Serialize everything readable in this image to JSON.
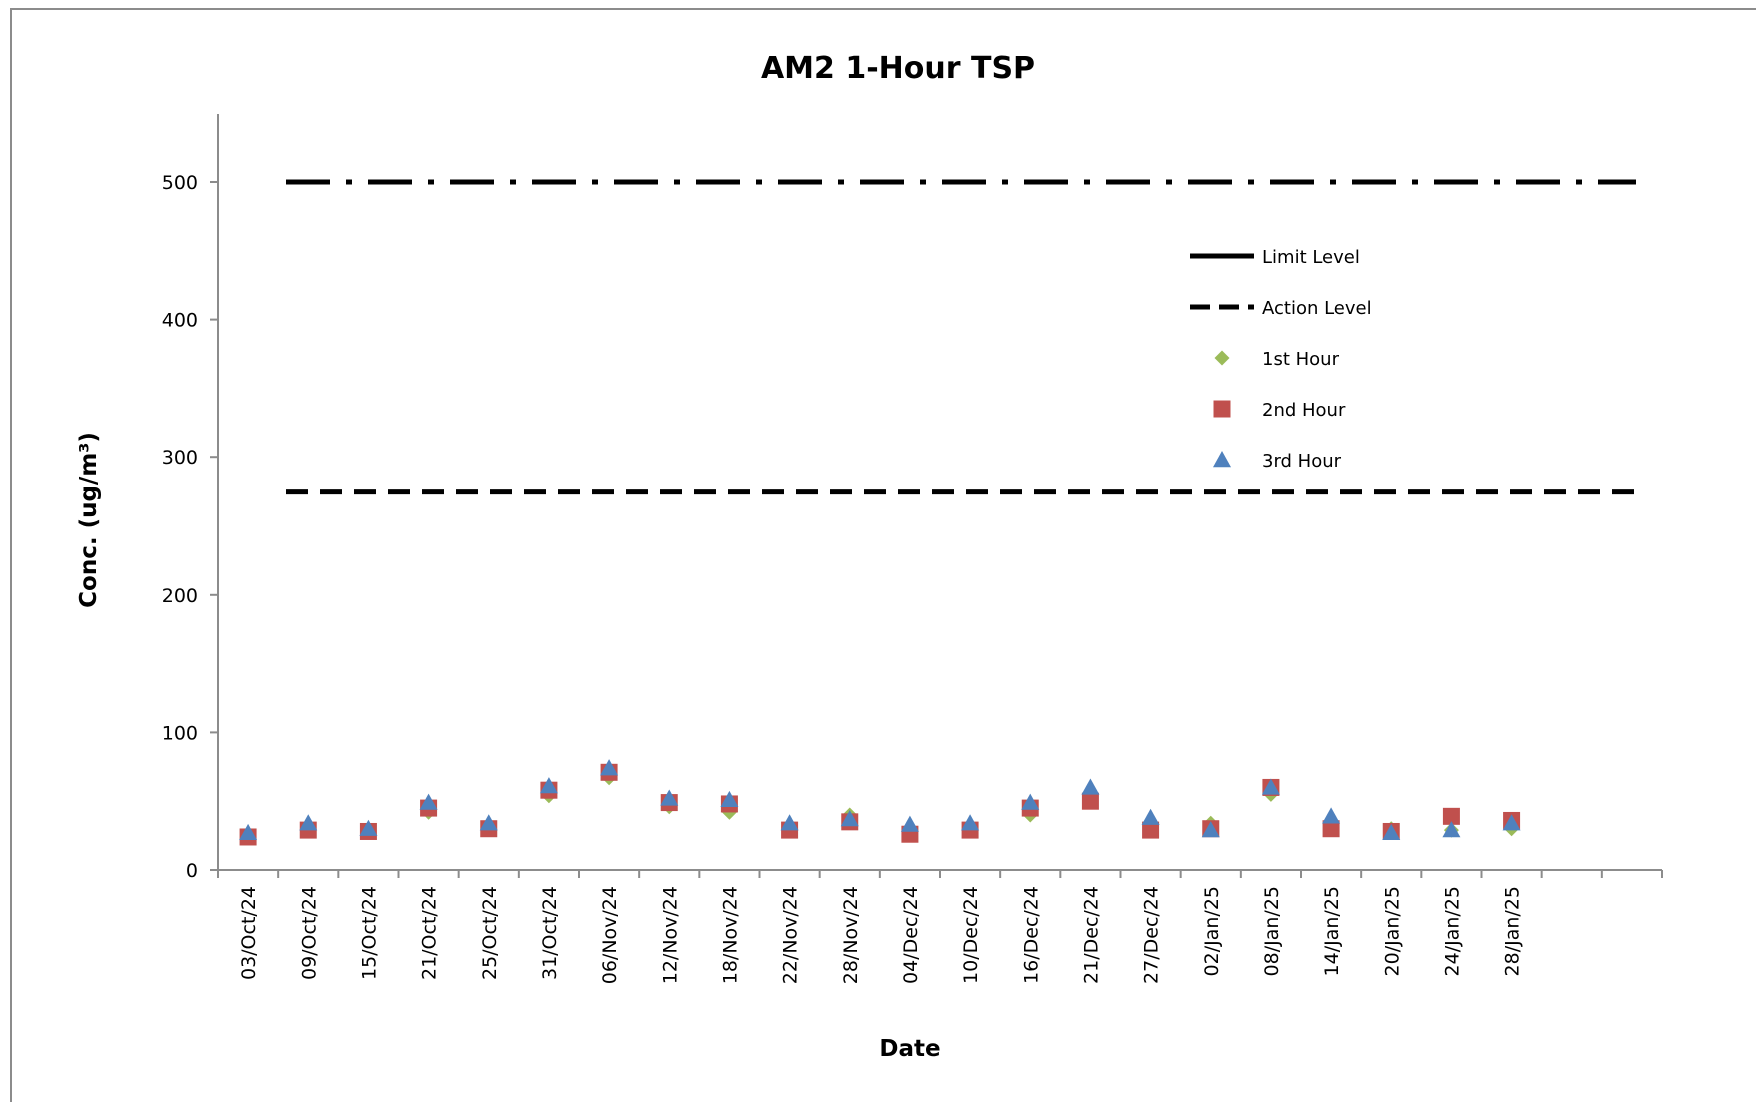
{
  "chart_data": {
    "type": "scatter",
    "title": "AM2 1-Hour TSP",
    "xlabel": "Date",
    "ylabel": "Conc. (ug/m³)",
    "ylim": [
      0,
      550
    ],
    "yticks": [
      0,
      100,
      200,
      300,
      400,
      500
    ],
    "grid": false,
    "legend_position": "right",
    "categories": [
      "03/Oct/24",
      "09/Oct/24",
      "15/Oct/24",
      "21/Oct/24",
      "25/Oct/24",
      "31/Oct/24",
      "06/Nov/24",
      "12/Nov/24",
      "18/Nov/24",
      "22/Nov/24",
      "28/Nov/24",
      "04/Dec/24",
      "10/Dec/24",
      "16/Dec/24",
      "21/Dec/24",
      "27/Dec/24",
      "02/Jan/25",
      "08/Jan/25",
      "14/Jan/25",
      "20/Jan/25",
      "24/Jan/25",
      "28/Jan/25"
    ],
    "reference_lines": [
      {
        "name": "Action Level",
        "value": 275,
        "style": "dashed",
        "color": "#000000"
      },
      {
        "name": "Limit Level",
        "value": 500,
        "style": "dash-dot",
        "color": "#000000"
      }
    ],
    "series": [
      {
        "name": "1st Hour",
        "marker": "diamond",
        "color": "#9BBB59",
        "values": [
          25,
          31,
          29,
          42,
          32,
          54,
          67,
          46,
          42,
          32,
          40,
          28,
          32,
          40,
          55,
          33,
          34,
          55,
          35,
          30,
          29,
          30
        ]
      },
      {
        "name": "2nd Hour",
        "marker": "square",
        "color": "#C0504D",
        "values": [
          24,
          29,
          28,
          45,
          30,
          58,
          71,
          49,
          48,
          29,
          35,
          26,
          29,
          45,
          50,
          29,
          30,
          60,
          30,
          28,
          39,
          36
        ]
      },
      {
        "name": "3rd Hour",
        "marker": "triangle",
        "color": "#4F81BD",
        "values": [
          27,
          34,
          30,
          49,
          34,
          61,
          74,
          52,
          51,
          34,
          37,
          33,
          34,
          49,
          60,
          38,
          29,
          60,
          39,
          27,
          29,
          34
        ]
      }
    ]
  }
}
